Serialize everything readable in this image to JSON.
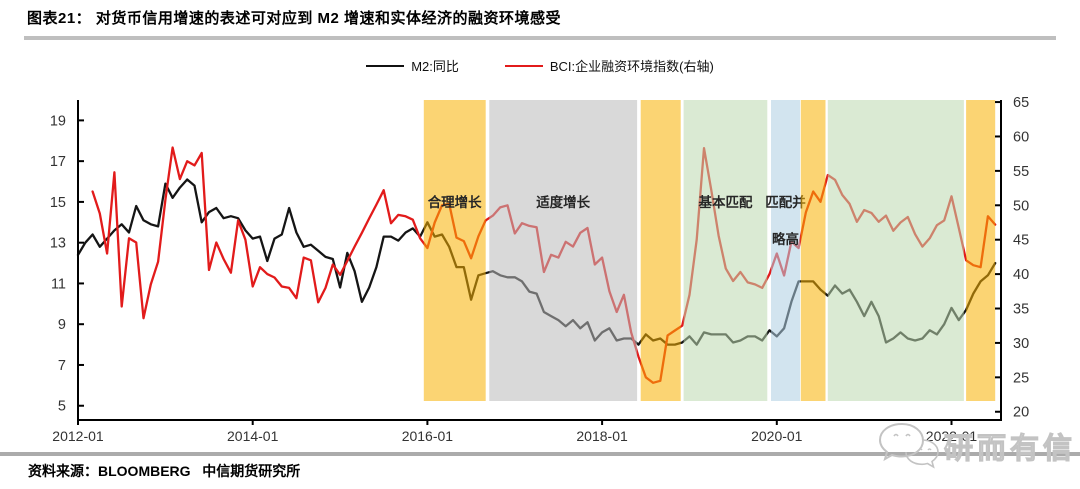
{
  "page": {
    "title": "图表21：  对货币信用增速的表述可对应到 M2 增速和实体经济的融资环境感受",
    "source": "资料来源：BLOOMBERG   中信期货研究所",
    "watermark_text": "研而有信",
    "watermark_icon": "wechat-bubbles-icon"
  },
  "legend": {
    "items": [
      {
        "label": "M2:同比",
        "color": "#111111"
      },
      {
        "label": "BCI:企业融资环境指数(右轴)",
        "color": "#e21b1b"
      }
    ]
  },
  "chart_data": {
    "type": "line",
    "x_axis": {
      "tick_labels": [
        "2012-01",
        "2014-01",
        "2016-01",
        "2018-01",
        "2020-01",
        "2022-01"
      ],
      "tick_months": [
        0,
        24,
        48,
        72,
        96,
        120
      ],
      "start": "2012-01",
      "end": "2022-07",
      "total_months": 126.8
    },
    "left_axis": {
      "ticks": [
        5,
        7,
        9,
        11,
        13,
        15,
        17,
        19
      ],
      "range": [
        4.3,
        20.0
      ]
    },
    "right_axis": {
      "ticks": [
        20,
        25,
        30,
        35,
        40,
        45,
        50,
        55,
        60,
        65
      ],
      "range": [
        18.8,
        65.3
      ]
    },
    "grid": false,
    "legend_position": "top-center",
    "series": [
      {
        "name": "M2:同比",
        "axis": "left",
        "color": "#151515",
        "start_month": 0,
        "values": [
          12.4,
          13.0,
          13.4,
          12.8,
          13.2,
          13.6,
          13.9,
          13.5,
          14.8,
          14.1,
          13.9,
          13.8,
          15.9,
          15.2,
          15.7,
          16.1,
          15.8,
          14.0,
          14.5,
          14.7,
          14.2,
          14.3,
          14.2,
          13.6,
          13.2,
          13.3,
          12.1,
          13.2,
          13.4,
          14.7,
          13.5,
          12.8,
          12.9,
          12.6,
          12.3,
          12.2,
          10.8,
          12.5,
          11.6,
          10.1,
          10.8,
          11.8,
          13.3,
          13.3,
          13.1,
          13.5,
          13.7,
          13.3,
          14.0,
          13.3,
          13.4,
          12.8,
          11.8,
          11.8,
          10.2,
          11.4,
          11.5,
          11.6,
          11.4,
          11.3,
          11.3,
          11.1,
          10.6,
          10.5,
          9.6,
          9.4,
          9.2,
          8.9,
          9.2,
          8.8,
          9.1,
          8.2,
          8.6,
          8.8,
          8.2,
          8.3,
          8.3,
          8.0,
          8.5,
          8.2,
          8.3,
          8.0,
          8.0,
          8.1,
          8.4,
          8.0,
          8.6,
          8.5,
          8.5,
          8.5,
          8.1,
          8.2,
          8.4,
          8.4,
          8.2,
          8.7,
          8.4,
          8.8,
          10.1,
          11.1,
          11.1,
          11.1,
          10.7,
          10.4,
          10.9,
          10.5,
          10.7,
          10.1,
          9.4,
          10.1,
          9.4,
          8.1,
          8.3,
          8.6,
          8.3,
          8.2,
          8.3,
          8.7,
          8.5,
          9.0,
          9.8,
          9.2,
          9.7,
          10.5,
          11.1,
          11.4,
          12.0
        ]
      },
      {
        "name": "BCI:企业融资环境指数(右轴)",
        "axis": "right",
        "color": "#e21b1b",
        "start_month": 2,
        "values": [
          52.0,
          48.8,
          43.0,
          54.8,
          35.3,
          45.2,
          44.6,
          33.6,
          38.5,
          41.8,
          50.8,
          58.4,
          53.8,
          56.4,
          55.8,
          57.6,
          40.6,
          44.6,
          42.2,
          40.2,
          47.8,
          45.0,
          38.2,
          41.0,
          40.0,
          39.5,
          38.2,
          38.0,
          36.5,
          42.4,
          42.0,
          35.9,
          38.0,
          41.4,
          39.9,
          41.9,
          44.0,
          46.0,
          48.1,
          50.1,
          52.2,
          47.4,
          48.6,
          48.4,
          47.9,
          45.2,
          43.8,
          47.5,
          50.0,
          50.2,
          45.3,
          44.8,
          42.3,
          45.5,
          47.8,
          48.5,
          49.7,
          50.0,
          45.9,
          47.4,
          47.0,
          46.8,
          40.3,
          42.8,
          42.4,
          44.7,
          44.0,
          46.0,
          46.7,
          41.4,
          42.4,
          37.5,
          34.5,
          37.0,
          31.5,
          28.0,
          25.0,
          24.2,
          24.5,
          31.1,
          31.8,
          32.5,
          37.0,
          45.0,
          58.3,
          52.2,
          45.6,
          40.8,
          39.0,
          40.3,
          38.8,
          38.5,
          38.0,
          40.0,
          43.0,
          39.8,
          44.7,
          43.8,
          49.0,
          52.0,
          50.5,
          54.4,
          53.7,
          51.5,
          50.2,
          47.6,
          49.3,
          48.9,
          47.6,
          48.5,
          46.3,
          47.5,
          48.3,
          45.8,
          44.0,
          45.2,
          47.1,
          47.8,
          51.3,
          46.7,
          42.0,
          41.3,
          41.0,
          48.4,
          47.2
        ]
      }
    ],
    "bands": [
      {
        "label_lines": [
          "合理增长"
        ],
        "from_month": 47.5,
        "to_month": 56.0,
        "color": "#f8b100"
      },
      {
        "label_lines": [
          "适度增长"
        ],
        "from_month": 56.5,
        "to_month": 76.8,
        "color": "#bababa"
      },
      {
        "label_lines": [],
        "from_month": 77.3,
        "to_month": 82.8,
        "color": "#f8b100"
      },
      {
        "label_lines": [
          "基本匹配"
        ],
        "from_month": 83.2,
        "to_month": 94.7,
        "color": "#bcd9af"
      },
      {
        "label_lines": [
          "匹配并",
          "略高"
        ],
        "from_month": 95.2,
        "to_month": 99.2,
        "color": "#adcee2"
      },
      {
        "label_lines": [],
        "from_month": 99.3,
        "to_month": 102.7,
        "color": "#f8b100"
      },
      {
        "label_lines": [],
        "from_month": 103.0,
        "to_month": 121.7,
        "color": "#bcd9af"
      },
      {
        "label_lines": [],
        "from_month": 122.0,
        "to_month": 126.0,
        "color": "#f8b100"
      }
    ],
    "band_opacity": 0.55
  }
}
